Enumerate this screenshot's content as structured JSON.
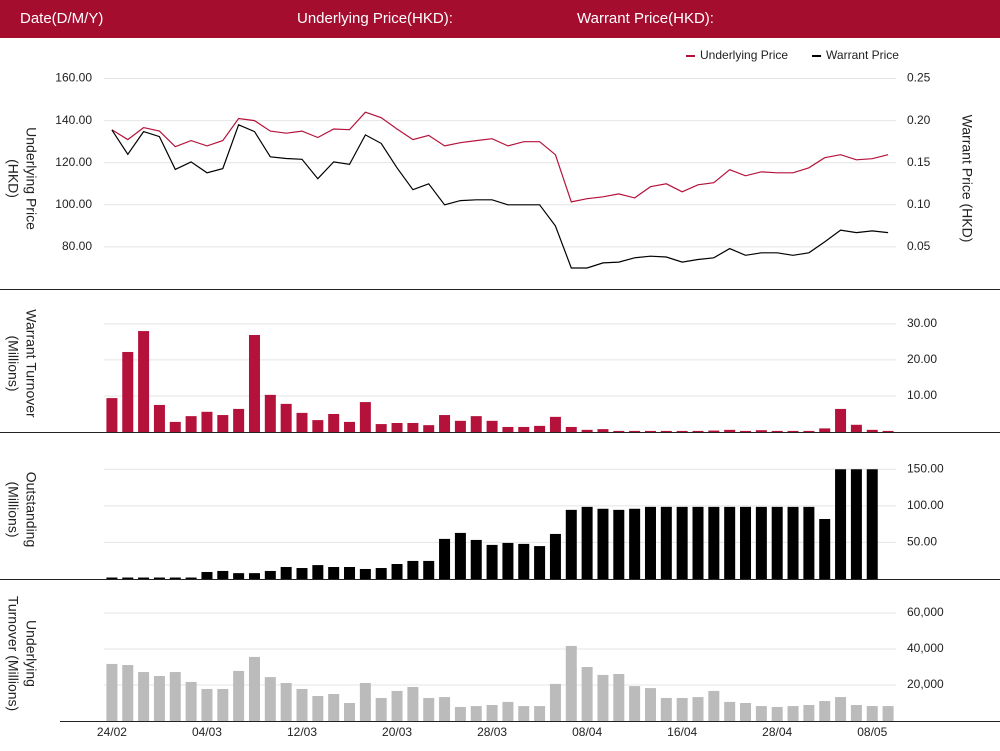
{
  "header": {
    "fields": [
      "Date(D/M/Y)",
      "Underlying Price(HKD):",
      "Warrant Price(HKD):"
    ]
  },
  "chart_data": [
    {
      "type": "line",
      "y_title": [
        "Underlying Price",
        "(HKD)"
      ],
      "y2_title": [
        "Warrant  Price (HKD)"
      ],
      "ylim": [
        60,
        165
      ],
      "yticks": [
        {
          "value": 80,
          "label": "80.00"
        },
        {
          "value": 100,
          "label": "100.00"
        },
        {
          "value": 120,
          "label": "120.00"
        },
        {
          "value": 140,
          "label": "140.00"
        },
        {
          "value": 160,
          "label": "160.00"
        }
      ],
      "y2lim": [
        0,
        0.2625
      ],
      "y2ticks": [
        0.05,
        {
          "value": 0.1,
          "label": "0.10"
        },
        0.15,
        {
          "value": 0.2,
          "label": "0.20"
        },
        0.25
      ],
      "grid": true,
      "legend": "top-right",
      "series": [
        {
          "name": "Underlying Price",
          "color": "#b5123b",
          "values": [
            135.7,
            131,
            136.7,
            135,
            127.6,
            130.5,
            128,
            130.5,
            141,
            140,
            135,
            134,
            135,
            132,
            136,
            135.7,
            144,
            141.4,
            136,
            131,
            133,
            128,
            129.5,
            130.5,
            131.4,
            128,
            130,
            130,
            123.8,
            101.4,
            102.9,
            103.8,
            105.2,
            103.3,
            108.6,
            110,
            106.2,
            109.5,
            110.5,
            116.7,
            113.8,
            115.7,
            115.2,
            115.2,
            117.6,
            122.4,
            123.8,
            121.4,
            121.9,
            123.8
          ]
        },
        {
          "name": "Warrant Price",
          "color": "#000000",
          "axis": "y2",
          "values": [
            0.189,
            0.16,
            0.187,
            0.181,
            0.142,
            0.151,
            0.138,
            0.143,
            0.195,
            0.187,
            0.157,
            0.155,
            0.154,
            0.131,
            0.151,
            0.148,
            0.183,
            0.173,
            0.144,
            0.118,
            0.125,
            0.1,
            0.105,
            0.106,
            0.106,
            0.1,
            0.1,
            0.1,
            0.075,
            0.025,
            0.025,
            0.031,
            0.032,
            0.037,
            0.039,
            0.038,
            0.032,
            0.035,
            0.037,
            0.048,
            0.04,
            0.043,
            0.043,
            0.04,
            0.043,
            0.056,
            0.07,
            0.067,
            0.069,
            0.067
          ]
        }
      ]
    },
    {
      "type": "bar",
      "y_title": [
        "Warrant  Turnover",
        "(Millions)"
      ],
      "ylim": [
        0,
        38
      ],
      "yticks": [
        {
          "value": 10,
          "label": "10.00"
        },
        {
          "value": 20,
          "label": "20.00"
        },
        {
          "value": 30,
          "label": "30.00"
        }
      ],
      "grid": true,
      "color": "#b5123b",
      "values": [
        9.4,
        22.2,
        28,
        7.5,
        2.8,
        4.4,
        5.6,
        4.7,
        6.4,
        26.9,
        10.3,
        7.8,
        5.3,
        3.3,
        5,
        2.8,
        8.3,
        2.2,
        2.5,
        2.5,
        1.9,
        4.7,
        3.1,
        4.4,
        3.1,
        1.4,
        1.4,
        1.7,
        4.2,
        1.4,
        0.6,
        0.8,
        0.3,
        0.3,
        0.3,
        0.3,
        0.3,
        0.3,
        0.4,
        0.6,
        0.3,
        0.5,
        0.3,
        0.3,
        0.3,
        1,
        6.4,
        2,
        0.6,
        0.3
      ]
    },
    {
      "type": "bar",
      "y_title": [
        "Outstanding",
        "(Millions)"
      ],
      "ylim": [
        0,
        190
      ],
      "yticks": [
        {
          "value": 50,
          "label": "50.00"
        },
        {
          "value": 100,
          "label": "100.00"
        },
        {
          "value": 150,
          "label": "150.00"
        }
      ],
      "grid": true,
      "color": "#000000",
      "values": [
        2,
        2,
        2,
        2,
        2,
        2,
        9.6,
        11,
        8,
        8,
        11,
        16.4,
        15,
        19,
        16.4,
        16.4,
        13.7,
        15,
        20.5,
        24.7,
        24.7,
        54.8,
        63,
        53.4,
        46.6,
        49.3,
        48,
        45,
        61.6,
        94.5,
        98.6,
        96,
        94.5,
        96,
        98.6,
        98.6,
        98.6,
        98.6,
        98.6,
        98.6,
        98.6,
        98.6,
        98.6,
        98.6,
        98.6,
        82,
        150,
        150,
        150,
        null
      ]
    },
    {
      "type": "bar",
      "y_title": [
        "Underlying",
        "Turnover (Millions)"
      ],
      "ylim": [
        0,
        75000
      ],
      "yticks": [
        {
          "value": 20000,
          "label": "20,000"
        },
        {
          "value": 40000,
          "label": "40,000"
        },
        {
          "value": 60000,
          "label": "60,000"
        }
      ],
      "grid": true,
      "color": "#bbbbbb",
      "categories": [
        "24/02",
        null,
        null,
        null,
        null,
        null,
        "04/03",
        null,
        null,
        null,
        null,
        null,
        "12/03",
        null,
        null,
        null,
        null,
        null,
        "20/03",
        null,
        null,
        null,
        null,
        null,
        "28/03",
        null,
        null,
        null,
        null,
        null,
        "08/04",
        null,
        null,
        null,
        null,
        null,
        "16/04",
        null,
        null,
        null,
        null,
        null,
        "28/04",
        null,
        null,
        null,
        null,
        null,
        "08/05",
        null
      ],
      "values": [
        31700,
        31100,
        27200,
        25000,
        27200,
        21700,
        17800,
        17800,
        27800,
        35600,
        24400,
        21100,
        17800,
        13900,
        15000,
        10000,
        21100,
        12800,
        16700,
        18900,
        12800,
        13300,
        7800,
        8300,
        8900,
        10600,
        8300,
        8300,
        20600,
        41700,
        30000,
        25600,
        26100,
        19400,
        18300,
        12800,
        12800,
        13300,
        16700,
        10600,
        10000,
        8300,
        7800,
        8300,
        8900,
        11100,
        13300,
        8900,
        8300,
        8300
      ]
    }
  ]
}
